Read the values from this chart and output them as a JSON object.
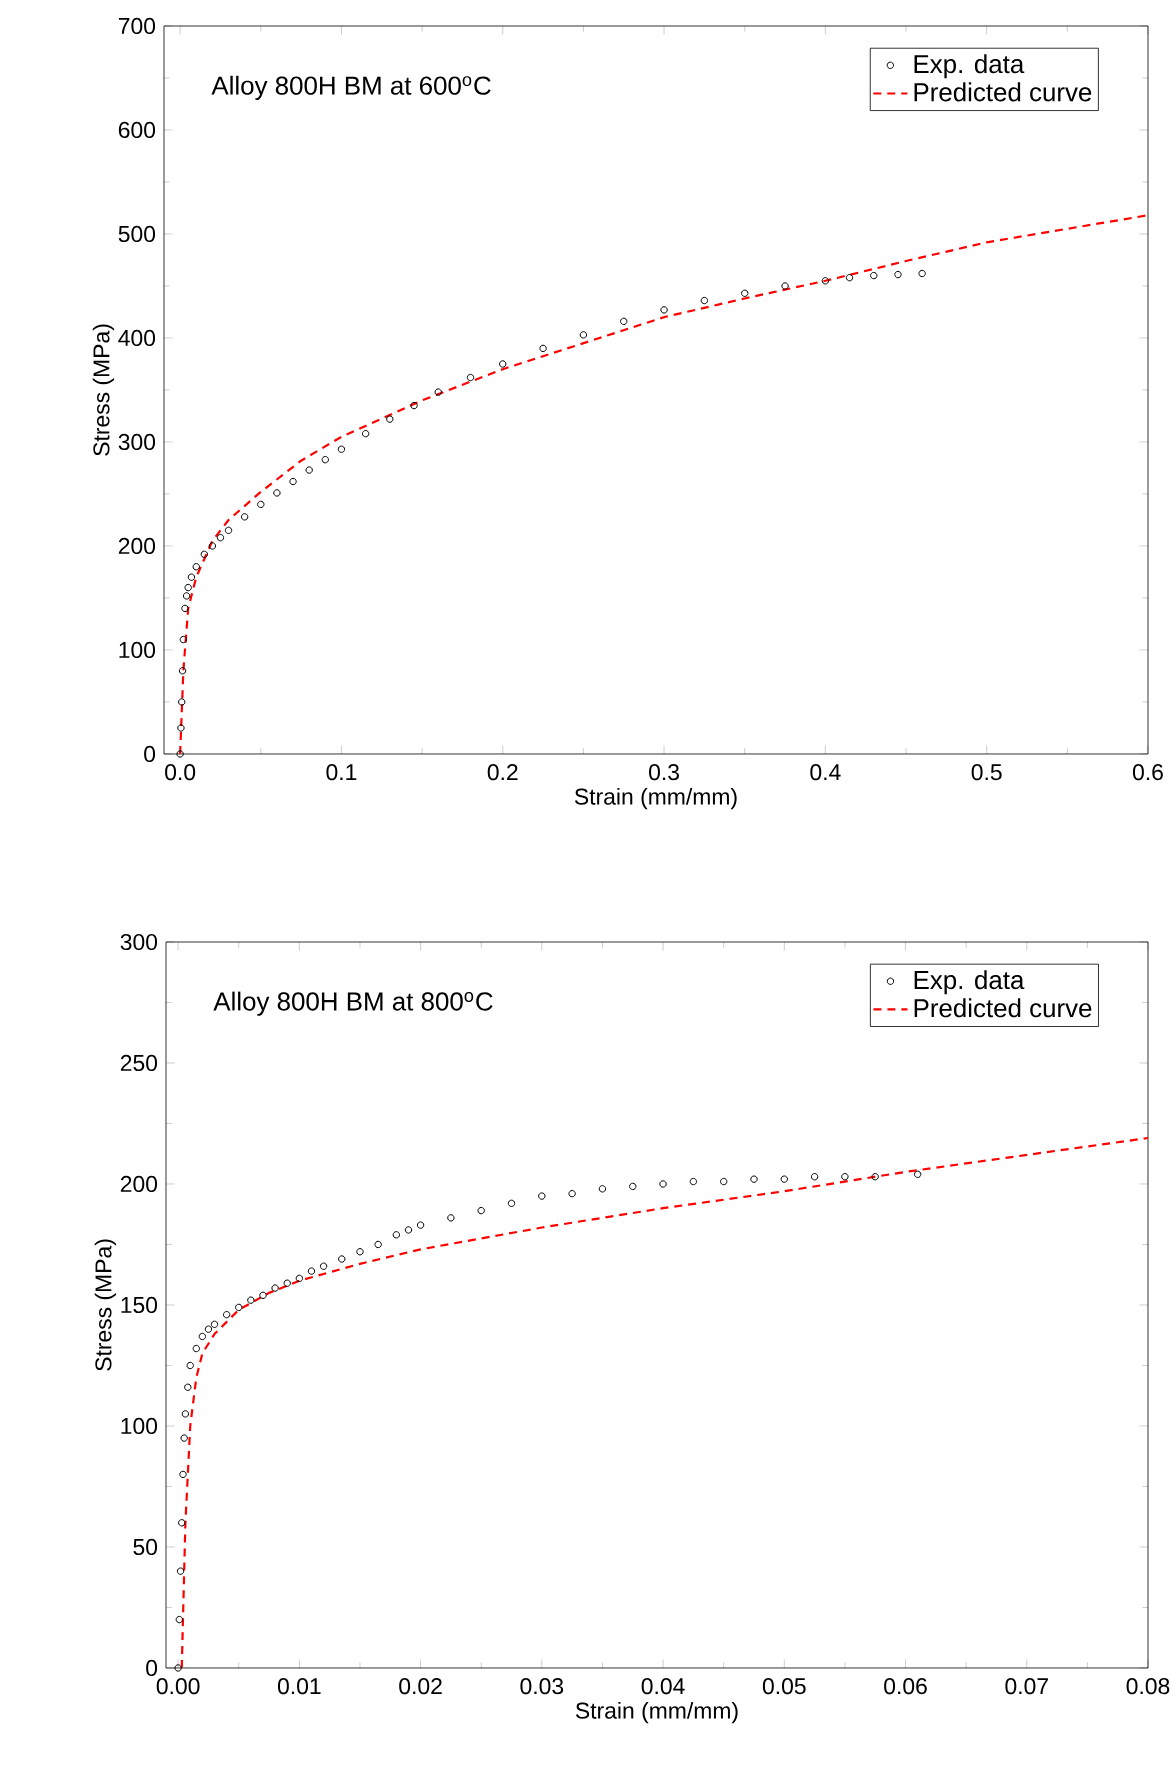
{
  "chart_data": [
    {
      "type": "line",
      "xlabel": "Strain (mm/mm)",
      "ylabel": "Stress (MPa)",
      "annotations": [
        "Alloy 800H BM at 600$^{o}$C"
      ],
      "xlim": [
        -0.01,
        0.6
      ],
      "ylim": [
        0,
        700
      ],
      "xticks": [
        {
          "value": 0,
          "label": "0.0"
        },
        0.1,
        0.2,
        0.3,
        0.4,
        0.5,
        0.6
      ],
      "yticks": [
        0,
        100,
        200,
        300,
        400,
        500,
        600,
        700
      ],
      "legend": "top right",
      "grid": false,
      "series": [
        {
          "name": "Exp. data",
          "type": "scatter",
          "marker": "circle",
          "color": "#000000",
          "x": [
            0,
            0.0005,
            0.001,
            0.0015,
            0.002,
            0.003,
            0.004,
            0.005,
            0.007,
            0.01,
            0.015,
            0.02,
            0.025,
            0.03,
            0.04,
            0.05,
            0.06,
            0.07,
            0.08,
            0.09,
            0.1,
            0.115,
            0.13,
            0.145,
            0.16,
            0.18,
            0.2,
            0.225,
            0.25,
            0.275,
            0.3,
            0.325,
            0.35,
            0.375,
            0.4,
            0.415,
            0.43,
            0.445,
            0.46
          ],
          "values": [
            0,
            25,
            50,
            80,
            110,
            140,
            152,
            160,
            170,
            180,
            192,
            200,
            208,
            215,
            228,
            240,
            251,
            262,
            273,
            283,
            293,
            308,
            322,
            335,
            348,
            362,
            375,
            390,
            403,
            416,
            427,
            436,
            443,
            450,
            455,
            458,
            460,
            461,
            462
          ]
        },
        {
          "name": "Predicted curve",
          "line_style": "dashed",
          "marker": "none",
          "color": "#ff0000",
          "x": [
            0,
            0.001,
            0.002,
            0.005,
            0.01,
            0.02,
            0.03,
            0.05,
            0.075,
            0.1,
            0.15,
            0.2,
            0.25,
            0.3,
            0.35,
            0.4,
            0.45,
            0.5,
            0.55,
            0.6
          ],
          "values": [
            0,
            40,
            80,
            140,
            170,
            205,
            225,
            252,
            282,
            305,
            340,
            370,
            395,
            420,
            438,
            455,
            474,
            492,
            505,
            518
          ]
        }
      ]
    },
    {
      "type": "line",
      "xlabel": "Strain (mm/mm)",
      "ylabel": "Stress (MPa)",
      "annotations": [
        "Alloy 800H BM at 800$^{o}$C"
      ],
      "xlim": [
        -0.001,
        0.08
      ],
      "ylim": [
        0,
        300
      ],
      "xticks": [
        {
          "value": 0,
          "label": "0.00"
        },
        {
          "value": 0.01,
          "label": "0.01"
        },
        {
          "value": 0.02,
          "label": "0.02"
        },
        {
          "value": 0.03,
          "label": "0.03"
        },
        {
          "value": 0.04,
          "label": "0.04"
        },
        {
          "value": 0.05,
          "label": "0.05"
        },
        {
          "value": 0.06,
          "label": "0.06"
        },
        {
          "value": 0.07,
          "label": "0.07"
        },
        {
          "value": 0.08,
          "label": "0.08"
        }
      ],
      "yticks": [
        0,
        50,
        100,
        150,
        200,
        250,
        300
      ],
      "legend": "top right",
      "grid": false,
      "series": [
        {
          "name": "Exp. data",
          "type": "scatter",
          "marker": "circle",
          "color": "#000000",
          "x": [
            0,
            0.0001,
            0.0002,
            0.0003,
            0.0004,
            0.0005,
            0.0006,
            0.0008,
            0.001,
            0.0015,
            0.002,
            0.0025,
            0.003,
            0.004,
            0.005,
            0.006,
            0.007,
            0.008,
            0.009,
            0.01,
            0.011,
            0.012,
            0.0135,
            0.015,
            0.0165,
            0.018,
            0.019,
            0.02,
            0.0225,
            0.025,
            0.0275,
            0.03,
            0.0325,
            0.035,
            0.0375,
            0.04,
            0.0425,
            0.045,
            0.0475,
            0.05,
            0.0525,
            0.055,
            0.0575,
            0.061
          ],
          "values": [
            0,
            20,
            40,
            60,
            80,
            95,
            105,
            116,
            125,
            132,
            137,
            140,
            142,
            146,
            149,
            152,
            154,
            157,
            159,
            161,
            164,
            166,
            169,
            172,
            175,
            179,
            181,
            183,
            186,
            189,
            192,
            195,
            196,
            198,
            199,
            200,
            201,
            201,
            202,
            202,
            203,
            203,
            203,
            204
          ]
        },
        {
          "name": "Predicted curve",
          "line_style": "dashed",
          "marker": "none",
          "color": "#ff0000",
          "x": [
            0.0003,
            0.0006,
            0.001,
            0.0015,
            0.002,
            0.003,
            0.005,
            0.0075,
            0.01,
            0.015,
            0.02,
            0.03,
            0.04,
            0.05,
            0.06,
            0.07,
            0.08
          ],
          "values": [
            0,
            60,
            100,
            120,
            130,
            138,
            148,
            155,
            160,
            167,
            173,
            182,
            190,
            197,
            205,
            212,
            219
          ]
        }
      ]
    }
  ]
}
